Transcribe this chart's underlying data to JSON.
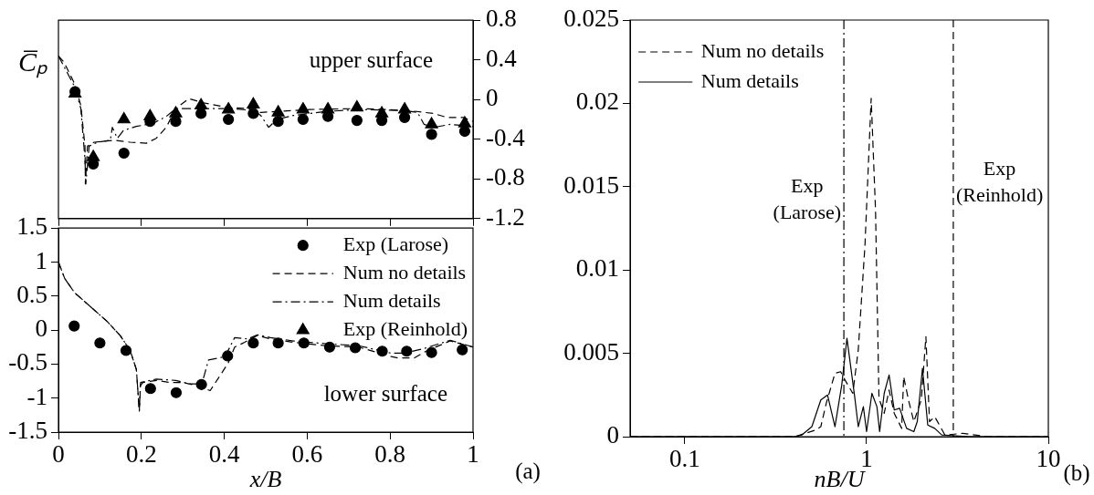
{
  "chart_data": [
    {
      "type": "line",
      "ylabel": "C̅ₚ",
      "annotations": [
        "upper surface"
      ],
      "xlim": [
        0,
        1
      ],
      "xticks": [
        0,
        0.2,
        0.4,
        0.6,
        0.8,
        1
      ],
      "y2lim": [
        -1.2,
        0.8
      ],
      "y2ticks": [
        0.8,
        0.4,
        0,
        -0.4,
        -0.8,
        -1.2
      ],
      "tick_labels": "y",
      "legend": false,
      "grid": false,
      "series": [
        {
          "type": "scatter",
          "marker": "circle",
          "color": "#000000",
          "axis": "y2",
          "x": [
            0.04,
            0.084,
            0.158,
            0.221,
            0.283,
            0.344,
            0.41,
            0.47,
            0.53,
            0.59,
            0.65,
            0.72,
            0.78,
            0.835,
            0.9,
            0.98
          ],
          "values": [
            0.08,
            -0.65,
            -0.54,
            -0.22,
            -0.22,
            -0.14,
            -0.2,
            -0.14,
            -0.22,
            -0.2,
            -0.17,
            -0.21,
            -0.21,
            -0.18,
            -0.35,
            -0.32
          ]
        },
        {
          "type": "line",
          "marker": "none",
          "line_style": "dashed",
          "color": "#000000",
          "axis": "y2",
          "x": [
            0,
            0.013,
            0.039,
            0.054,
            0.064,
            0.065,
            0.07,
            0.086,
            0.133,
            0.173,
            0.212,
            0.236,
            0.26,
            0.283,
            0.315,
            0.346,
            0.41,
            0.456,
            0.488,
            0.527,
            0.606,
            0.725,
            0.843,
            0.905,
            0.937,
            0.976,
            1
          ],
          "values": [
            0.44,
            0.38,
            0.16,
            -0.06,
            -0.47,
            -0.85,
            -0.47,
            -0.43,
            -0.41,
            -0.43,
            -0.44,
            -0.39,
            -0.28,
            -0.09,
            0.01,
            -0.03,
            -0.08,
            -0.09,
            -0.13,
            -0.12,
            -0.1,
            -0.09,
            -0.11,
            -0.14,
            -0.18,
            -0.18,
            -0.22
          ]
        },
        {
          "type": "line",
          "marker": "none",
          "line_style": "dashdot",
          "color": "#000000",
          "axis": "y2",
          "x": [
            0,
            0.039,
            0.054,
            0.064,
            0.066,
            0.074,
            0.094,
            0.125,
            0.13,
            0.142,
            0.157,
            0.188,
            0.228,
            0.26,
            0.283,
            0.315,
            0.346,
            0.41,
            0.472,
            0.488,
            0.507,
            0.527,
            0.567,
            0.645,
            0.725,
            0.835,
            0.866,
            0.882,
            0.905,
            0.945,
            1
          ],
          "values": [
            0.44,
            0.13,
            -0.09,
            -0.6,
            -0.85,
            -0.47,
            -0.43,
            -0.41,
            -0.28,
            -0.39,
            -0.31,
            -0.27,
            -0.24,
            -0.17,
            -0.09,
            -0.09,
            -0.09,
            -0.09,
            -0.11,
            -0.16,
            -0.28,
            -0.2,
            -0.16,
            -0.12,
            -0.1,
            -0.11,
            -0.13,
            -0.25,
            -0.28,
            -0.25,
            -0.27
          ]
        },
        {
          "type": "scatter",
          "marker": "triangle",
          "color": "#000000",
          "axis": "y2",
          "x": [
            0.04,
            0.084,
            0.158,
            0.221,
            0.283,
            0.344,
            0.41,
            0.47,
            0.53,
            0.59,
            0.65,
            0.72,
            0.78,
            0.835,
            0.9,
            0.98
          ],
          "values": [
            0.06,
            -0.58,
            -0.2,
            -0.17,
            -0.14,
            -0.06,
            -0.1,
            -0.05,
            -0.13,
            -0.1,
            -0.1,
            -0.08,
            -0.14,
            -0.1,
            -0.25,
            -0.24
          ]
        }
      ]
    },
    {
      "type": "line",
      "xlabel": "x/B",
      "annotations": [
        "lower surface",
        "(a)"
      ],
      "xlim": [
        0,
        1
      ],
      "xticks": [
        0,
        0.2,
        0.4,
        0.6,
        0.8,
        1
      ],
      "ylim": [
        -1.5,
        1.5
      ],
      "yticks": [
        -1.5,
        -1,
        -0.5,
        0,
        0.5,
        1,
        1.5
      ],
      "legend": "top right",
      "grid": false,
      "series": [
        {
          "name": "Exp (Larose)",
          "type": "scatter",
          "marker": "circle",
          "color": "#000000",
          "x": [
            0.038,
            0.1,
            0.163,
            0.222,
            0.284,
            0.345,
            0.408,
            0.47,
            0.53,
            0.592,
            0.654,
            0.716,
            0.781,
            0.84,
            0.9,
            0.974
          ],
          "values": [
            0.06,
            -0.19,
            -0.3,
            -0.86,
            -0.92,
            -0.8,
            -0.38,
            -0.19,
            -0.19,
            -0.19,
            -0.25,
            -0.26,
            -0.31,
            -0.31,
            -0.33,
            -0.29
          ]
        },
        {
          "name": "Num no details",
          "type": "line",
          "marker": "none",
          "line_style": "dashed",
          "color": "#000000",
          "x": [
            0,
            0.015,
            0.039,
            0.078,
            0.117,
            0.149,
            0.173,
            0.188,
            0.195,
            0.198,
            0.204,
            0.236,
            0.267,
            0.299,
            0.33,
            0.366,
            0.409,
            0.425,
            0.449,
            0.48,
            0.511,
            0.567,
            0.645,
            0.724,
            0.803,
            0.819,
            0.858,
            0.89,
            0.945,
            1
          ],
          "values": [
            1,
            0.76,
            0.55,
            0.34,
            0.13,
            -0.08,
            -0.3,
            -0.58,
            -1.19,
            -0.81,
            -0.77,
            -0.74,
            -0.77,
            -0.77,
            -0.81,
            -0.89,
            -0.49,
            -0.25,
            -0.18,
            -0.08,
            -0.13,
            -0.18,
            -0.23,
            -0.25,
            -0.39,
            -0.41,
            -0.41,
            -0.3,
            -0.16,
            -0.25
          ]
        },
        {
          "name": "Num details",
          "type": "line",
          "marker": "none",
          "line_style": "dashdot",
          "color": "#000000",
          "x": [
            0,
            0.015,
            0.039,
            0.078,
            0.117,
            0.149,
            0.173,
            0.188,
            0.195,
            0.198,
            0.236,
            0.283,
            0.315,
            0.346,
            0.362,
            0.402,
            0.425,
            0.456,
            0.48,
            0.511,
            0.567,
            0.645,
            0.724,
            0.803,
            0.835,
            0.882,
            0.945,
            1
          ],
          "values": [
            1,
            0.76,
            0.55,
            0.34,
            0.13,
            -0.08,
            -0.3,
            -0.58,
            -1.19,
            -0.77,
            -0.72,
            -0.74,
            -0.79,
            -0.79,
            -0.44,
            -0.39,
            -0.11,
            -0.13,
            -0.07,
            -0.11,
            -0.16,
            -0.2,
            -0.23,
            -0.34,
            -0.34,
            -0.27,
            -0.15,
            -0.25
          ]
        },
        {
          "name": "Exp (Reinhold)",
          "type": "scatter",
          "marker": "triangle",
          "color": "#000000"
        }
      ]
    },
    {
      "type": "line",
      "xlabel": "nB/U",
      "annotations": [
        "(b)"
      ],
      "log": "x",
      "xlim": [
        0.05,
        10
      ],
      "xticks": [
        0.1,
        1,
        10
      ],
      "ylim": [
        0,
        0.025
      ],
      "yticks": [
        0,
        0.005,
        0.01,
        0.015,
        0.02,
        0.025
      ],
      "legend": "top left",
      "grid": false,
      "ref_lines": [
        {
          "axis": "x",
          "value": 0.75,
          "label": "Exp (Larose)",
          "line_style": "dashdot",
          "color": "#000000"
        },
        {
          "axis": "x",
          "value": 3,
          "label": "Exp (Reinhold)",
          "line_style": "dashed",
          "color": "#000000"
        }
      ],
      "series": [
        {
          "name": "Num no details",
          "type": "line",
          "marker": "none",
          "line_style": "dashed",
          "color": "#000000",
          "x": [
            0.05,
            0.403,
            0.526,
            0.56,
            0.6,
            0.67,
            0.72,
            0.77,
            0.84,
            0.9,
            0.98,
            1.06,
            1.12,
            1.17,
            1.25,
            1.33,
            1.42,
            1.56,
            1.6,
            1.7,
            1.82,
            2,
            2.12,
            2.22,
            2.37,
            2.7,
            3.38,
            4.6,
            10
          ],
          "values": [
            0,
            0,
            0.0004,
            0.0006,
            0.002,
            0.0038,
            0.0039,
            0.0033,
            0.0026,
            0.0052,
            0.0115,
            0.0203,
            0.0136,
            0.0023,
            0.0014,
            0.0028,
            0.0014,
            0.0005,
            0.0036,
            0.0022,
            0.0009,
            0.0022,
            0.006,
            0.0009,
            0.0012,
            0.0001,
            0.0002,
            0,
            0
          ]
        },
        {
          "name": "Num details",
          "type": "line",
          "marker": "none",
          "line_style": "solid",
          "color": "#000000",
          "x": [
            0.05,
            0.4,
            0.44,
            0.5,
            0.56,
            0.61,
            0.67,
            0.73,
            0.78,
            0.86,
            0.9,
            0.96,
            1,
            1.07,
            1.14,
            1.18,
            1.25,
            1.33,
            1.42,
            1.52,
            1.66,
            1.82,
            1.9,
            2.03,
            2.17,
            2.37,
            2.59,
            3.69,
            10
          ],
          "values": [
            0,
            0,
            0.0001,
            0.0006,
            0.0022,
            0.0025,
            0.0006,
            0.0031,
            0.0059,
            0.0024,
            0.0006,
            0.0018,
            0.0003,
            0.0026,
            0.0018,
            0.0003,
            0.0026,
            0.0037,
            0.0016,
            0.0017,
            0.0005,
            0.0003,
            0.0009,
            0.0041,
            0.0007,
            0.0005,
            0.0001,
            0,
            0
          ]
        }
      ]
    }
  ]
}
